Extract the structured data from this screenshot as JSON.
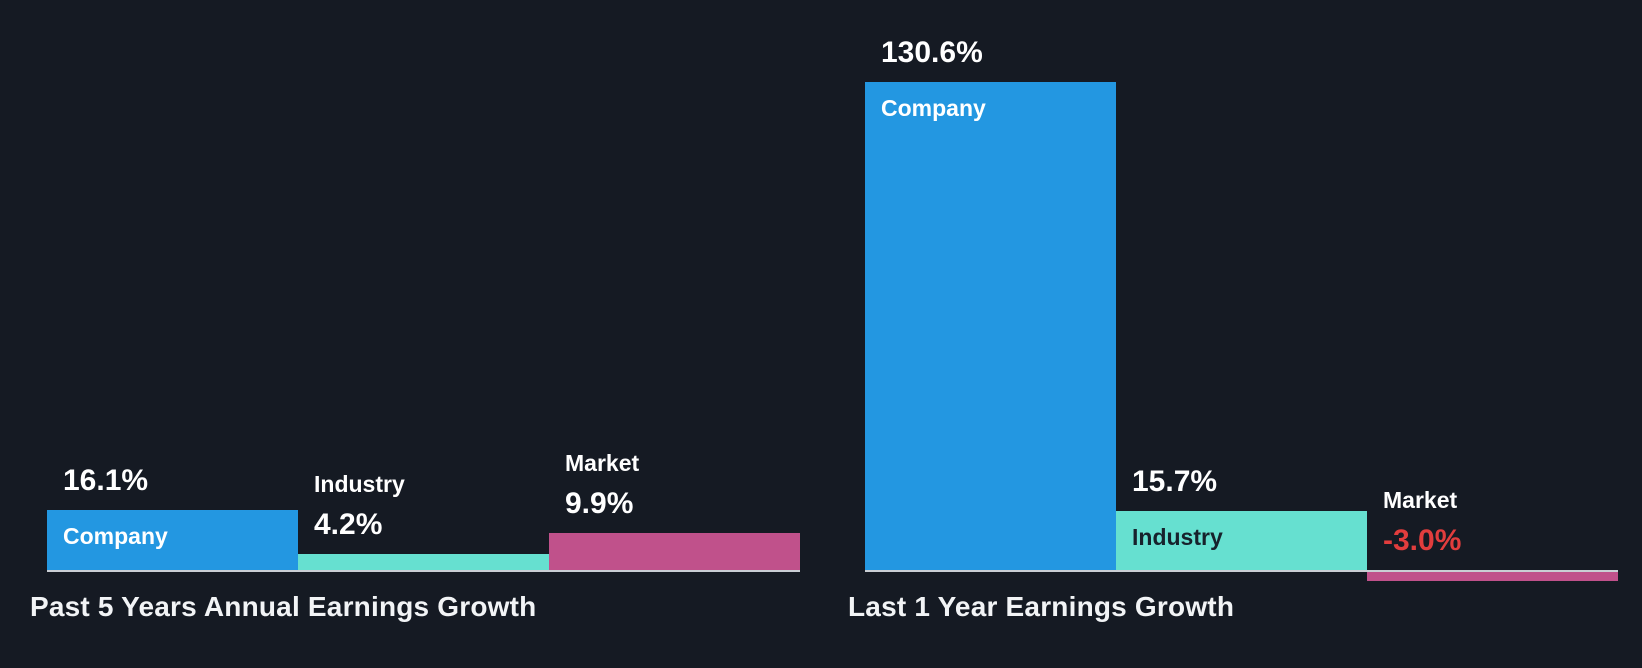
{
  "style": {
    "background": "#151a23",
    "baseline_color": "#c9ced4",
    "title_color": "#f2f4f6"
  },
  "chart_data": [
    {
      "type": "bar",
      "title": "Past 5 Years Annual Earnings Growth",
      "categories": [
        "Company",
        "Industry",
        "Market"
      ],
      "values": [
        16.1,
        4.2,
        9.9
      ],
      "value_labels": [
        "16.1%",
        "4.2%",
        "9.9%"
      ],
      "unit": "%",
      "bar_colors": [
        "#2397e1",
        "#66e0d0",
        "#c0518b"
      ],
      "value_label_colors": [
        "#ffffff",
        "#ffffff",
        "#ffffff"
      ],
      "name_label_colors_inside": [
        "#ffffff",
        "#17222c",
        "#ffffff"
      ],
      "ylim": [
        -5,
        140
      ],
      "grid": false,
      "legend": "none"
    },
    {
      "type": "bar",
      "title": "Last 1 Year Earnings Growth",
      "categories": [
        "Company",
        "Industry",
        "Market"
      ],
      "values": [
        130.6,
        15.7,
        -3.0
      ],
      "value_labels": [
        "130.6%",
        "15.7%",
        "-3.0%"
      ],
      "unit": "%",
      "bar_colors": [
        "#2397e1",
        "#66e0d0",
        "#c0518b"
      ],
      "value_label_colors": [
        "#ffffff",
        "#ffffff",
        "#e23d3d"
      ],
      "name_label_colors_inside": [
        "#ffffff",
        "#17222c",
        "#ffffff"
      ],
      "ylim": [
        -5,
        140
      ],
      "grid": false,
      "legend": "none"
    }
  ]
}
